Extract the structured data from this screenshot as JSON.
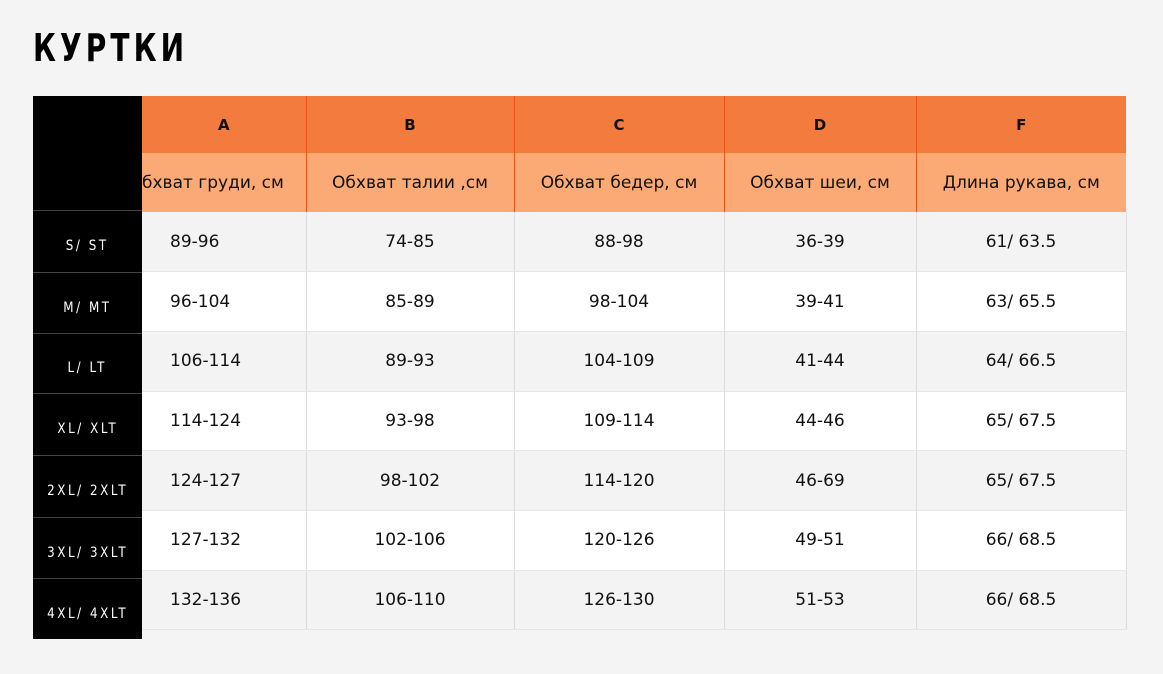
{
  "title": "КУРТКИ",
  "columns": [
    {
      "letter": "A",
      "label": "бхват груди, см"
    },
    {
      "letter": "B",
      "label": "Обхват талии ,см"
    },
    {
      "letter": "C",
      "label": "Обхват бедер, см"
    },
    {
      "letter": "D",
      "label": "Обхват шеи, см"
    },
    {
      "letter": "F",
      "label": "Длина рукава, см"
    }
  ],
  "rows": [
    {
      "size": "S/ ST",
      "values": [
        "89-96",
        "74-85",
        "88-98",
        "36-39",
        "61/ 63.5"
      ]
    },
    {
      "size": "M/ MT",
      "values": [
        "96-104",
        "85-89",
        "98-104",
        "39-41",
        "63/ 65.5"
      ]
    },
    {
      "size": "L/ LT",
      "values": [
        "106-114",
        "89-93",
        "104-109",
        "41-44",
        "64/ 66.5"
      ]
    },
    {
      "size": "XL/ XLT",
      "values": [
        "114-124",
        "93-98",
        "109-114",
        "44-46",
        "65/ 67.5"
      ]
    },
    {
      "size": "2XL/ 2XLT",
      "values": [
        "124-127",
        "98-102",
        "114-120",
        "46-69",
        "65/ 67.5"
      ]
    },
    {
      "size": "3XL/ 3XLT",
      "values": [
        "127-132",
        "102-106",
        "120-126",
        "49-51",
        "66/ 68.5"
      ]
    },
    {
      "size": "4XL/ 4XLT",
      "values": [
        "132-136",
        "106-110",
        "126-130",
        "51-53",
        "66/ 68.5"
      ]
    }
  ],
  "colors": {
    "header": "#f47b3e",
    "subheader": "#fba975",
    "size_column": "#000000"
  }
}
